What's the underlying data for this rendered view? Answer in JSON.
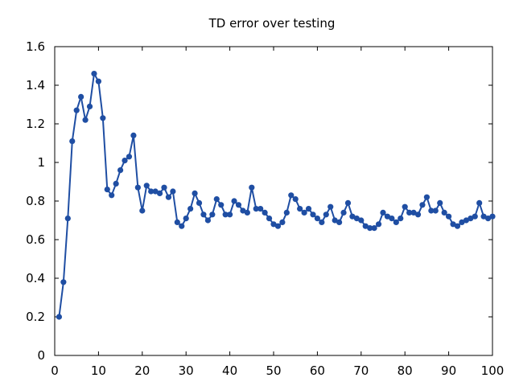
{
  "chart_data": {
    "type": "line",
    "title": "TD error over testing",
    "xlabel": "",
    "ylabel": "",
    "xlim": [
      0,
      100
    ],
    "ylim": [
      0,
      1.6
    ],
    "grid": false,
    "legend": "none",
    "xticks": [
      "0",
      "10",
      "20",
      "30",
      "40",
      "50",
      "60",
      "70",
      "80",
      "90",
      "100"
    ],
    "yticks": [
      "0",
      "0.2",
      "0.4",
      "0.6",
      "0.8",
      "1",
      "1.2",
      "1.4",
      "1.6"
    ],
    "series": [
      {
        "color": "#1f4ea3",
        "x": [
          1,
          2,
          3,
          4,
          5,
          6,
          7,
          8,
          9,
          10,
          11,
          12,
          13,
          14,
          15,
          16,
          17,
          18,
          19,
          20,
          21,
          22,
          23,
          24,
          25,
          26,
          27,
          28,
          29,
          30,
          31,
          32,
          33,
          34,
          35,
          36,
          37,
          38,
          39,
          40,
          41,
          42,
          43,
          44,
          45,
          46,
          47,
          48,
          49,
          50,
          51,
          52,
          53,
          54,
          55,
          56,
          57,
          58,
          59,
          60,
          61,
          62,
          63,
          64,
          65,
          66,
          67,
          68,
          69,
          70,
          71,
          72,
          73,
          74,
          75,
          76,
          77,
          78,
          79,
          80,
          81,
          82,
          83,
          84,
          85,
          86,
          87,
          88,
          89,
          90,
          91,
          92,
          93,
          94,
          95,
          96,
          97,
          98,
          99,
          100
        ],
        "values": [
          0.2,
          0.38,
          0.71,
          1.11,
          1.27,
          1.34,
          1.22,
          1.29,
          1.46,
          1.42,
          1.23,
          0.86,
          0.83,
          0.89,
          0.96,
          1.01,
          1.03,
          1.14,
          0.87,
          0.75,
          0.88,
          0.85,
          0.85,
          0.84,
          0.87,
          0.82,
          0.85,
          0.69,
          0.67,
          0.71,
          0.76,
          0.84,
          0.79,
          0.73,
          0.7,
          0.73,
          0.81,
          0.78,
          0.73,
          0.73,
          0.8,
          0.78,
          0.75,
          0.74,
          0.87,
          0.76,
          0.76,
          0.74,
          0.71,
          0.68,
          0.67,
          0.69,
          0.74,
          0.83,
          0.81,
          0.76,
          0.74,
          0.76,
          0.73,
          0.71,
          0.69,
          0.73,
          0.77,
          0.7,
          0.69,
          0.74,
          0.79,
          0.72,
          0.71,
          0.7,
          0.67,
          0.66,
          0.66,
          0.68,
          0.74,
          0.72,
          0.71,
          0.69,
          0.71,
          0.77,
          0.74,
          0.74,
          0.73,
          0.78,
          0.82,
          0.75,
          0.75,
          0.79,
          0.74,
          0.72,
          0.68,
          0.67,
          0.69,
          0.7,
          0.71,
          0.72,
          0.79,
          0.72,
          0.71,
          0.72
        ]
      }
    ]
  }
}
